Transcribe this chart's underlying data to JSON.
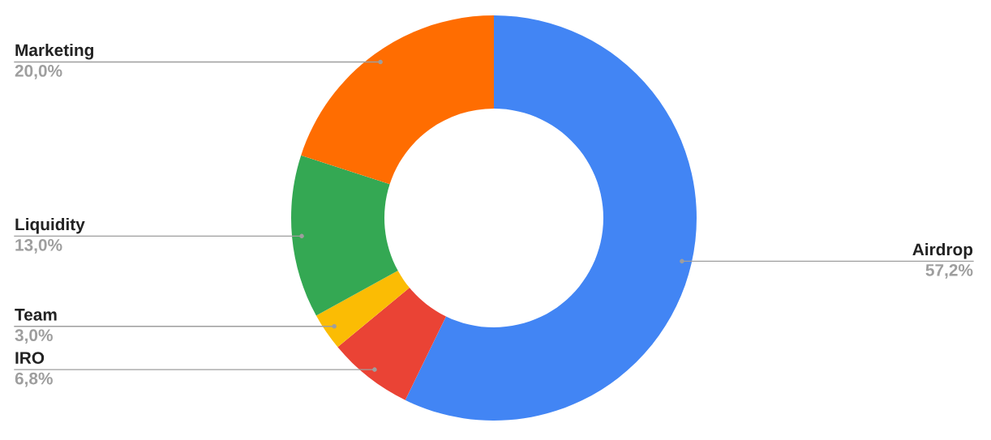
{
  "chart_data": {
    "type": "donut",
    "categories": [
      "Airdrop",
      "IRO",
      "Team",
      "Liquidity",
      "Marketing"
    ],
    "values": [
      57.2,
      6.8,
      3.0,
      13.0,
      20.0
    ],
    "colors": [
      "#4285f4",
      "#ea4335",
      "#fbbc04",
      "#34a853",
      "#ff6d01"
    ],
    "value_labels": [
      "57,2%",
      "6,8%",
      "3,0%",
      "13,0%",
      "20,0%"
    ],
    "legend": false
  }
}
